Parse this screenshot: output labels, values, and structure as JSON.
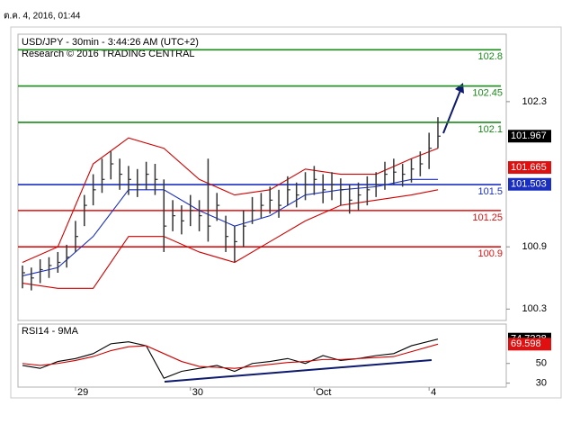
{
  "window_title": "ต.ค. 4, 2016, 01:44",
  "chart_data": [
    {
      "type": "ohlc",
      "title": "USD/JPY - 30min - 3:44:26 AM (UTC+2)",
      "subtitle": "Research © 2016 TRADING CENTRAL",
      "categories": [
        null,
        null,
        null,
        null,
        null,
        null,
        "29",
        null,
        null,
        null,
        null,
        null,
        null,
        null,
        null,
        null,
        null,
        null,
        null,
        "30",
        null,
        null,
        null,
        null,
        null,
        null,
        null,
        null,
        null,
        null,
        null,
        null,
        null,
        "Oct",
        null,
        null,
        null,
        null,
        null,
        null,
        null,
        null,
        null,
        null,
        null,
        null,
        "4",
        null
      ],
      "high": [
        100.72,
        100.7,
        100.78,
        100.8,
        100.85,
        100.92,
        101.15,
        101.4,
        101.6,
        101.75,
        101.82,
        101.75,
        101.68,
        101.65,
        101.72,
        101.7,
        101.55,
        101.35,
        101.3,
        101.4,
        101.35,
        101.75,
        101.42,
        101.2,
        101.1,
        101.25,
        101.38,
        101.42,
        101.48,
        101.45,
        101.58,
        101.52,
        101.62,
        101.68,
        101.6,
        101.62,
        101.56,
        101.5,
        101.52,
        101.58,
        101.62,
        101.72,
        101.75,
        101.7,
        101.75,
        101.82,
        102.0,
        102.15
      ],
      "low": [
        100.5,
        100.48,
        100.55,
        100.6,
        100.65,
        100.7,
        100.85,
        101.1,
        101.3,
        101.42,
        101.55,
        101.45,
        101.4,
        101.38,
        101.45,
        101.4,
        100.85,
        101.05,
        101.02,
        101.1,
        101.05,
        100.95,
        101.15,
        100.85,
        100.75,
        100.9,
        101.12,
        101.18,
        101.22,
        101.18,
        101.3,
        101.28,
        101.35,
        101.4,
        101.32,
        101.35,
        101.3,
        101.22,
        101.25,
        101.3,
        101.38,
        101.45,
        101.5,
        101.48,
        101.52,
        101.58,
        101.65,
        101.85
      ],
      "close": [
        100.65,
        100.6,
        100.68,
        100.72,
        100.75,
        100.8,
        101.0,
        101.3,
        101.45,
        101.55,
        101.7,
        101.6,
        101.55,
        101.5,
        101.6,
        101.55,
        101.1,
        101.2,
        101.15,
        101.25,
        101.2,
        101.1,
        101.3,
        101.0,
        100.95,
        101.1,
        101.25,
        101.3,
        101.35,
        101.3,
        101.45,
        101.4,
        101.5,
        101.55,
        101.45,
        101.5,
        101.45,
        101.35,
        101.4,
        101.45,
        101.5,
        101.6,
        101.62,
        101.6,
        101.65,
        101.7,
        101.85,
        101.967
      ],
      "color": "#333333",
      "series": [
        {
          "color": "#d00000",
          "x": [
            0,
            4,
            8,
            12,
            16,
            20,
            24,
            28,
            32,
            36,
            40,
            44,
            47
          ],
          "values": [
            100.75,
            100.9,
            101.7,
            101.95,
            101.85,
            101.55,
            101.4,
            101.45,
            101.65,
            101.6,
            101.6,
            101.75,
            101.85
          ]
        },
        {
          "color": "#1a2fc0",
          "x": [
            0,
            4,
            8,
            12,
            16,
            20,
            24,
            28,
            32,
            36,
            40,
            44,
            47
          ],
          "values": [
            100.62,
            100.7,
            101.0,
            101.45,
            101.45,
            101.25,
            101.1,
            101.2,
            101.4,
            101.45,
            101.48,
            101.55,
            101.55
          ]
        },
        {
          "color": "#d00000",
          "x": [
            0,
            4,
            8,
            12,
            16,
            20,
            24,
            28,
            32,
            36,
            40,
            44,
            47
          ],
          "values": [
            100.55,
            100.5,
            100.5,
            101.0,
            101.0,
            100.85,
            100.75,
            100.95,
            101.15,
            101.3,
            101.35,
            101.4,
            101.45
          ]
        }
      ],
      "levels": [
        {
          "value": 102.8,
          "color": "#1a8a1a"
        },
        {
          "value": 102.45,
          "color": "#1a8a1a"
        },
        {
          "value": 102.1,
          "color": "#1a8a1a"
        },
        {
          "value": 101.5,
          "color": "#1a2fc0"
        },
        {
          "value": 101.25,
          "color": "#e01010"
        },
        {
          "value": 100.9,
          "color": "#e01010"
        }
      ],
      "price_tags": [
        {
          "value": 101.967,
          "color": "#000000"
        },
        {
          "value": 101.665,
          "color": "#e01010"
        },
        {
          "value": 101.503,
          "color": "#1a2fc0"
        }
      ],
      "ylim": [
        100.19,
        102.95
      ],
      "yticks": [
        100.3,
        100.9,
        102.3
      ]
    },
    {
      "type": "line",
      "title": "RSI14 - 9MA",
      "series": [
        {
          "color": "#000000",
          "x": [
            0,
            2,
            4,
            6,
            8,
            10,
            12,
            14,
            16,
            18,
            20,
            22,
            24,
            26,
            28,
            30,
            32,
            34,
            36,
            38,
            40,
            42,
            44,
            47
          ],
          "values": [
            48,
            45,
            52,
            55,
            60,
            70,
            72,
            68,
            35,
            42,
            45,
            48,
            42,
            50,
            52,
            55,
            50,
            58,
            53,
            55,
            58,
            60,
            68,
            74.7228
          ]
        },
        {
          "color": "#d00000",
          "x": [
            0,
            2,
            4,
            6,
            8,
            10,
            12,
            14,
            16,
            18,
            20,
            22,
            24,
            26,
            28,
            30,
            32,
            34,
            36,
            38,
            40,
            42,
            44,
            47
          ],
          "values": [
            50,
            48,
            50,
            53,
            57,
            63,
            67,
            68,
            60,
            52,
            47,
            46,
            45,
            47,
            49,
            51,
            52,
            54,
            54,
            55,
            56,
            57,
            62,
            69.598
          ]
        }
      ],
      "price_tags": [
        {
          "value": 74.7228,
          "color": "#000000"
        },
        {
          "value": 69.598,
          "color": "#e01010"
        }
      ],
      "ylim": [
        26,
        90
      ],
      "yticks": [
        30,
        50
      ]
    }
  ]
}
